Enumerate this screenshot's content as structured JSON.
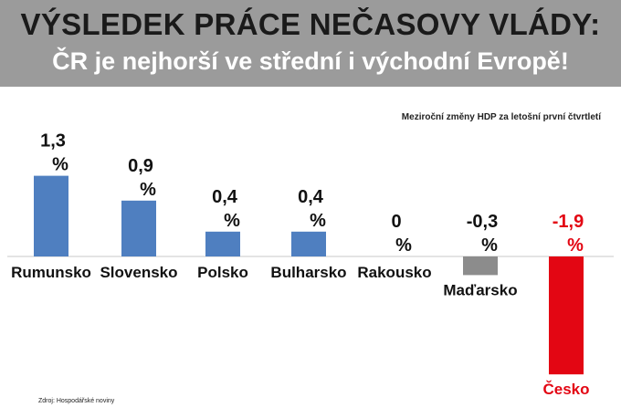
{
  "header": {
    "title": "VÝSLEDEK PRÁCE NEČASOVY VLÁDY:",
    "subtitle": "ČR je nejhorší ve střední i východní Evropě!"
  },
  "note": "Meziroční změny HDP za letošní první čtvrtletí",
  "source": "Zdroj: Hospodářské noviny",
  "chart_data": {
    "type": "bar",
    "categories": [
      "Rumunsko",
      "Slovensko",
      "Polsko",
      "Bulharsko",
      "Rakousko",
      "Maďarsko",
      "Česko"
    ],
    "values": [
      1.3,
      0.9,
      0.4,
      0.4,
      0,
      -0.3,
      -1.9
    ],
    "value_labels": [
      "1,3",
      "0,9",
      "0,4",
      "0,4",
      "0",
      "-0,3",
      "-1,9"
    ],
    "unit": "%",
    "colors": [
      "#4f7fc0",
      "#4f7fc0",
      "#4f7fc0",
      "#4f7fc0",
      "#4f7fc0",
      "#8c8c8c",
      "#e30613"
    ],
    "label_colors": [
      "#111111",
      "#111111",
      "#111111",
      "#111111",
      "#111111",
      "#111111",
      "#e30613"
    ],
    "ylim": [
      -1.9,
      1.3
    ],
    "grid": false,
    "legend": "none"
  }
}
